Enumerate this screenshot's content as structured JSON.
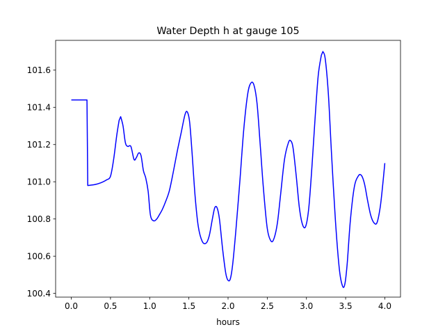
{
  "chart_data": {
    "type": "line",
    "title": "Water Depth h at gauge 105",
    "xlabel": "hours",
    "ylabel": "",
    "xlim": [
      -0.2,
      4.2
    ],
    "ylim": [
      100.38,
      101.76
    ],
    "xticks": [
      0.0,
      0.5,
      1.0,
      1.5,
      2.0,
      2.5,
      3.0,
      3.5,
      4.0
    ],
    "xtick_labels": [
      "0.0",
      "0.5",
      "1.0",
      "1.5",
      "2.0",
      "2.5",
      "3.0",
      "3.5",
      "4.0"
    ],
    "yticks": [
      100.4,
      100.6,
      100.8,
      101.0,
      101.2,
      101.4,
      101.6
    ],
    "ytick_labels": [
      "100.4",
      "100.6",
      "100.8",
      "101.0",
      "101.2",
      "101.4",
      "101.6"
    ],
    "grid": false,
    "series": [
      {
        "color": "#0000ff",
        "x": [
          0.0,
          0.2,
          0.2,
          0.21,
          0.3,
          0.38,
          0.45,
          0.5,
          0.54,
          0.58,
          0.61,
          0.63,
          0.66,
          0.69,
          0.72,
          0.76,
          0.8,
          0.83,
          0.86,
          0.89,
          0.92,
          0.95,
          0.98,
          1.01,
          1.05,
          1.09,
          1.12,
          1.16,
          1.2,
          1.25,
          1.3,
          1.35,
          1.4,
          1.45,
          1.48,
          1.51,
          1.54,
          1.58,
          1.62,
          1.67,
          1.72,
          1.76,
          1.8,
          1.83,
          1.86,
          1.89,
          1.93,
          1.97,
          2.0,
          2.03,
          2.06,
          2.1,
          2.15,
          2.2,
          2.25,
          2.29,
          2.33,
          2.37,
          2.41,
          2.45,
          2.5,
          2.55,
          2.59,
          2.63,
          2.67,
          2.72,
          2.77,
          2.8,
          2.83,
          2.87,
          2.91,
          2.95,
          2.99,
          3.03,
          3.07,
          3.11,
          3.15,
          3.19,
          3.21,
          3.24,
          3.28,
          3.32,
          3.37,
          3.42,
          3.46,
          3.49,
          3.52,
          3.56,
          3.61,
          3.66,
          3.7,
          3.74,
          3.78,
          3.82,
          3.86,
          3.9,
          3.94,
          3.97,
          4.0
        ],
        "y": [
          101.44,
          101.44,
          101.44,
          100.98,
          100.985,
          100.995,
          101.01,
          101.03,
          101.12,
          101.25,
          101.33,
          101.35,
          101.3,
          101.21,
          101.19,
          101.19,
          101.12,
          101.13,
          101.155,
          101.14,
          101.06,
          101.02,
          100.95,
          100.82,
          100.79,
          100.8,
          100.82,
          100.85,
          100.89,
          100.95,
          101.05,
          101.16,
          101.26,
          101.36,
          101.375,
          101.32,
          101.16,
          100.92,
          100.76,
          100.68,
          100.67,
          100.71,
          100.8,
          100.86,
          100.86,
          100.8,
          100.64,
          100.51,
          100.47,
          100.48,
          100.56,
          100.74,
          101.0,
          101.28,
          101.47,
          101.53,
          101.52,
          101.42,
          101.2,
          100.97,
          100.75,
          100.68,
          100.7,
          100.78,
          100.93,
          101.12,
          101.21,
          101.22,
          101.18,
          101.03,
          100.86,
          100.77,
          100.76,
          100.86,
          101.08,
          101.34,
          101.57,
          101.68,
          101.7,
          101.66,
          101.47,
          101.15,
          100.79,
          100.53,
          100.44,
          100.45,
          100.56,
          100.79,
          100.97,
          101.03,
          101.035,
          100.99,
          100.9,
          100.82,
          100.78,
          100.78,
          100.86,
          100.97,
          101.1
        ]
      }
    ]
  }
}
